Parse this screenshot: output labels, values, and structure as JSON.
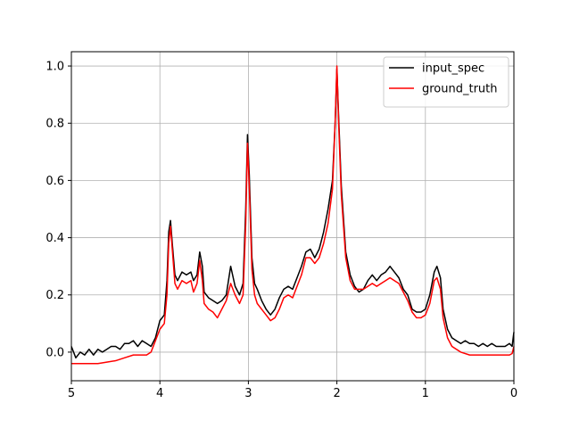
{
  "chart_data": {
    "type": "line",
    "title": "",
    "xlabel": "",
    "ylabel": "",
    "xlim": [
      5,
      0
    ],
    "ylim": [
      -0.1,
      1.05
    ],
    "x_ticks": [
      5,
      4,
      3,
      2,
      1,
      0
    ],
    "x_tick_labels": [
      "5",
      "4",
      "3",
      "2",
      "1",
      "0"
    ],
    "y_ticks": [
      0.0,
      0.2,
      0.4,
      0.6,
      0.8,
      1.0
    ],
    "y_tick_labels": [
      "0.0",
      "0.2",
      "0.4",
      "0.6",
      "0.8",
      "1.0"
    ],
    "grid": true,
    "legend": {
      "position": "top-right"
    },
    "series": [
      {
        "name": "input_spec",
        "color": "#000000",
        "points": [
          [
            5.0,
            0.02
          ],
          [
            4.95,
            -0.02
          ],
          [
            4.9,
            0.0
          ],
          [
            4.85,
            -0.01
          ],
          [
            4.8,
            0.01
          ],
          [
            4.75,
            -0.01
          ],
          [
            4.7,
            0.01
          ],
          [
            4.65,
            0.0
          ],
          [
            4.6,
            0.01
          ],
          [
            4.55,
            0.02
          ],
          [
            4.5,
            0.02
          ],
          [
            4.45,
            0.01
          ],
          [
            4.4,
            0.03
          ],
          [
            4.35,
            0.03
          ],
          [
            4.3,
            0.04
          ],
          [
            4.25,
            0.02
          ],
          [
            4.2,
            0.04
          ],
          [
            4.15,
            0.03
          ],
          [
            4.1,
            0.02
          ],
          [
            4.05,
            0.05
          ],
          [
            4.0,
            0.11
          ],
          [
            3.95,
            0.13
          ],
          [
            3.92,
            0.25
          ],
          [
            3.9,
            0.42
          ],
          [
            3.88,
            0.46
          ],
          [
            3.86,
            0.38
          ],
          [
            3.83,
            0.27
          ],
          [
            3.8,
            0.25
          ],
          [
            3.75,
            0.28
          ],
          [
            3.7,
            0.27
          ],
          [
            3.65,
            0.28
          ],
          [
            3.62,
            0.25
          ],
          [
            3.58,
            0.27
          ],
          [
            3.55,
            0.35
          ],
          [
            3.52,
            0.3
          ],
          [
            3.5,
            0.21
          ],
          [
            3.45,
            0.19
          ],
          [
            3.4,
            0.18
          ],
          [
            3.35,
            0.17
          ],
          [
            3.3,
            0.18
          ],
          [
            3.25,
            0.2
          ],
          [
            3.2,
            0.3
          ],
          [
            3.15,
            0.23
          ],
          [
            3.1,
            0.2
          ],
          [
            3.06,
            0.24
          ],
          [
            3.03,
            0.5
          ],
          [
            3.01,
            0.76
          ],
          [
            2.99,
            0.62
          ],
          [
            2.96,
            0.33
          ],
          [
            2.93,
            0.24
          ],
          [
            2.9,
            0.22
          ],
          [
            2.85,
            0.18
          ],
          [
            2.8,
            0.15
          ],
          [
            2.75,
            0.13
          ],
          [
            2.7,
            0.15
          ],
          [
            2.65,
            0.19
          ],
          [
            2.6,
            0.22
          ],
          [
            2.55,
            0.23
          ],
          [
            2.5,
            0.22
          ],
          [
            2.45,
            0.26
          ],
          [
            2.4,
            0.3
          ],
          [
            2.35,
            0.35
          ],
          [
            2.3,
            0.36
          ],
          [
            2.25,
            0.33
          ],
          [
            2.2,
            0.36
          ],
          [
            2.15,
            0.42
          ],
          [
            2.1,
            0.5
          ],
          [
            2.05,
            0.6
          ],
          [
            2.02,
            0.8
          ],
          [
            2.0,
            0.99
          ],
          [
            1.98,
            0.82
          ],
          [
            1.95,
            0.58
          ],
          [
            1.9,
            0.35
          ],
          [
            1.85,
            0.27
          ],
          [
            1.8,
            0.23
          ],
          [
            1.75,
            0.21
          ],
          [
            1.7,
            0.22
          ],
          [
            1.65,
            0.25
          ],
          [
            1.6,
            0.27
          ],
          [
            1.55,
            0.25
          ],
          [
            1.5,
            0.27
          ],
          [
            1.45,
            0.28
          ],
          [
            1.4,
            0.3
          ],
          [
            1.35,
            0.28
          ],
          [
            1.3,
            0.26
          ],
          [
            1.25,
            0.22
          ],
          [
            1.2,
            0.2
          ],
          [
            1.15,
            0.15
          ],
          [
            1.1,
            0.14
          ],
          [
            1.05,
            0.14
          ],
          [
            1.0,
            0.15
          ],
          [
            0.95,
            0.2
          ],
          [
            0.9,
            0.28
          ],
          [
            0.87,
            0.3
          ],
          [
            0.83,
            0.26
          ],
          [
            0.8,
            0.15
          ],
          [
            0.75,
            0.08
          ],
          [
            0.7,
            0.05
          ],
          [
            0.65,
            0.04
          ],
          [
            0.6,
            0.03
          ],
          [
            0.55,
            0.04
          ],
          [
            0.5,
            0.03
          ],
          [
            0.45,
            0.03
          ],
          [
            0.4,
            0.02
          ],
          [
            0.35,
            0.03
          ],
          [
            0.3,
            0.02
          ],
          [
            0.25,
            0.03
          ],
          [
            0.2,
            0.02
          ],
          [
            0.15,
            0.02
          ],
          [
            0.1,
            0.02
          ],
          [
            0.05,
            0.03
          ],
          [
            0.02,
            0.02
          ],
          [
            0.0,
            0.07
          ]
        ]
      },
      {
        "name": "ground_truth",
        "color": "#ff0000",
        "points": [
          [
            5.0,
            -0.04
          ],
          [
            4.9,
            -0.04
          ],
          [
            4.8,
            -0.04
          ],
          [
            4.7,
            -0.04
          ],
          [
            4.6,
            -0.035
          ],
          [
            4.5,
            -0.03
          ],
          [
            4.4,
            -0.02
          ],
          [
            4.3,
            -0.01
          ],
          [
            4.2,
            -0.01
          ],
          [
            4.15,
            -0.01
          ],
          [
            4.1,
            0.0
          ],
          [
            4.05,
            0.04
          ],
          [
            4.0,
            0.08
          ],
          [
            3.95,
            0.1
          ],
          [
            3.92,
            0.2
          ],
          [
            3.9,
            0.38
          ],
          [
            3.88,
            0.44
          ],
          [
            3.86,
            0.36
          ],
          [
            3.83,
            0.24
          ],
          [
            3.8,
            0.22
          ],
          [
            3.75,
            0.25
          ],
          [
            3.7,
            0.24
          ],
          [
            3.65,
            0.25
          ],
          [
            3.62,
            0.21
          ],
          [
            3.58,
            0.24
          ],
          [
            3.55,
            0.32
          ],
          [
            3.52,
            0.25
          ],
          [
            3.5,
            0.17
          ],
          [
            3.45,
            0.15
          ],
          [
            3.4,
            0.14
          ],
          [
            3.35,
            0.12
          ],
          [
            3.3,
            0.15
          ],
          [
            3.25,
            0.18
          ],
          [
            3.2,
            0.24
          ],
          [
            3.15,
            0.2
          ],
          [
            3.1,
            0.17
          ],
          [
            3.06,
            0.2
          ],
          [
            3.03,
            0.45
          ],
          [
            3.01,
            0.73
          ],
          [
            2.99,
            0.58
          ],
          [
            2.96,
            0.29
          ],
          [
            2.93,
            0.2
          ],
          [
            2.9,
            0.17
          ],
          [
            2.85,
            0.15
          ],
          [
            2.8,
            0.13
          ],
          [
            2.75,
            0.11
          ],
          [
            2.7,
            0.12
          ],
          [
            2.65,
            0.15
          ],
          [
            2.6,
            0.19
          ],
          [
            2.55,
            0.2
          ],
          [
            2.5,
            0.19
          ],
          [
            2.45,
            0.23
          ],
          [
            2.4,
            0.27
          ],
          [
            2.35,
            0.33
          ],
          [
            2.3,
            0.33
          ],
          [
            2.25,
            0.31
          ],
          [
            2.2,
            0.33
          ],
          [
            2.15,
            0.38
          ],
          [
            2.1,
            0.45
          ],
          [
            2.05,
            0.57
          ],
          [
            2.02,
            0.8
          ],
          [
            2.0,
            1.0
          ],
          [
            1.98,
            0.8
          ],
          [
            1.95,
            0.55
          ],
          [
            1.9,
            0.33
          ],
          [
            1.85,
            0.25
          ],
          [
            1.8,
            0.22
          ],
          [
            1.75,
            0.22
          ],
          [
            1.7,
            0.22
          ],
          [
            1.65,
            0.23
          ],
          [
            1.6,
            0.24
          ],
          [
            1.55,
            0.23
          ],
          [
            1.5,
            0.24
          ],
          [
            1.45,
            0.25
          ],
          [
            1.4,
            0.26
          ],
          [
            1.35,
            0.25
          ],
          [
            1.3,
            0.24
          ],
          [
            1.25,
            0.21
          ],
          [
            1.2,
            0.18
          ],
          [
            1.15,
            0.14
          ],
          [
            1.1,
            0.12
          ],
          [
            1.05,
            0.12
          ],
          [
            1.0,
            0.13
          ],
          [
            0.95,
            0.17
          ],
          [
            0.9,
            0.25
          ],
          [
            0.87,
            0.26
          ],
          [
            0.83,
            0.22
          ],
          [
            0.8,
            0.12
          ],
          [
            0.75,
            0.05
          ],
          [
            0.7,
            0.02
          ],
          [
            0.6,
            0.0
          ],
          [
            0.5,
            -0.01
          ],
          [
            0.4,
            -0.01
          ],
          [
            0.3,
            -0.01
          ],
          [
            0.2,
            -0.01
          ],
          [
            0.1,
            -0.01
          ],
          [
            0.05,
            -0.01
          ],
          [
            0.02,
            -0.005
          ],
          [
            0.0,
            0.02
          ]
        ]
      }
    ]
  }
}
